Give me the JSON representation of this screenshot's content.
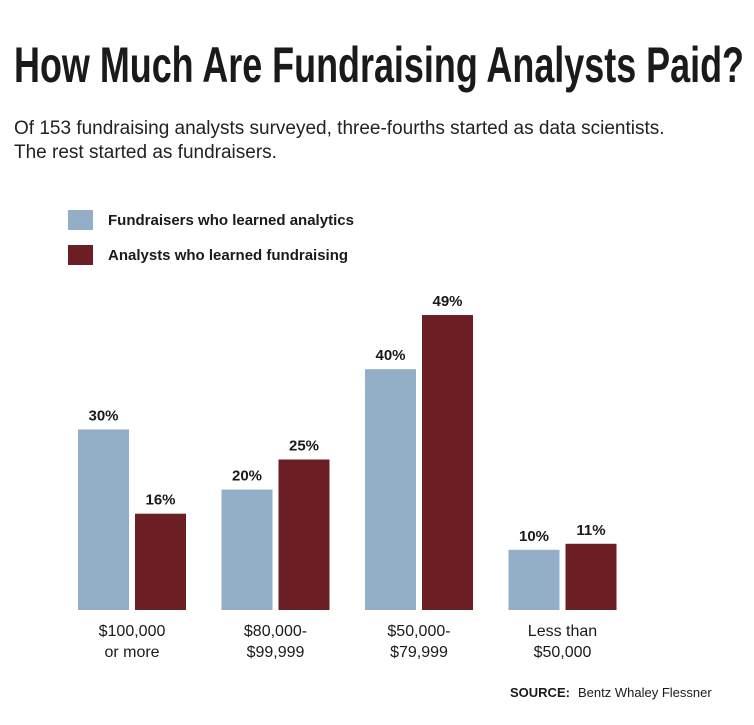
{
  "chart_data": {
    "type": "bar",
    "title": "How Much Are Fundraising Analysts Paid?",
    "subtitle": [
      "Of 153 fundraising analysts surveyed, three-fourths started as data scientists.",
      "The rest started as fundraisers."
    ],
    "categories": [
      [
        "$100,000",
        "or more"
      ],
      [
        "$80,000-",
        "$99,999"
      ],
      [
        "$50,000-",
        "$79,999"
      ],
      [
        "Less than",
        "$50,000"
      ]
    ],
    "series": [
      {
        "name": "Fundraisers who learned analytics",
        "color": "#93afc8",
        "values": [
          30,
          20,
          40,
          10
        ],
        "value_labels": [
          "30%",
          "20%",
          "40%",
          "10%"
        ]
      },
      {
        "name": "Analysts who learned fundraising",
        "color": "#6b1f24",
        "values": [
          16,
          25,
          49,
          11
        ],
        "value_labels": [
          "16%",
          "25%",
          "49%",
          "11%"
        ]
      }
    ],
    "source_label": "SOURCE:",
    "source": "Bentz Whaley Flessner"
  }
}
